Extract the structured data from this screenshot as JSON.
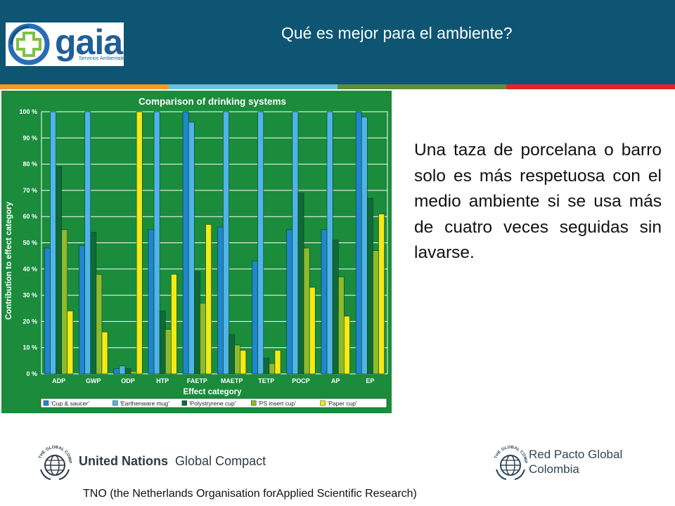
{
  "header": {
    "title": "Qué es mejor para el ambiente?",
    "logo_text": "gaia",
    "logo_subtitle": "Servicios Ambientales"
  },
  "colors": {
    "header_bg": "#0e5573",
    "stripe": [
      "#f29a25",
      "#67c3dd",
      "#5e8c3a",
      "#e2232a"
    ],
    "chart_bg": "#1a8c3c",
    "series": [
      "#1f86cf",
      "#4fb4e8",
      "#0f6a36",
      "#8dbb2d",
      "#f5ea14"
    ]
  },
  "chart_data": {
    "type": "bar",
    "title": "Comparison of drinking systems",
    "xlabel": "Effect category",
    "ylabel": "Contribution to effect category",
    "ylim": [
      0,
      100
    ],
    "yticks": [
      "0 %",
      "10 %",
      "20 %",
      "30 %",
      "40 %",
      "50 %",
      "60 %",
      "70 %",
      "80 %",
      "90 %",
      "100 %"
    ],
    "categories": [
      "ADP",
      "GWP",
      "ODP",
      "HTP",
      "FAETP",
      "MAETP",
      "TETP",
      "POCP",
      "AP",
      "EP"
    ],
    "series": [
      {
        "name": "'Cup & saucer'",
        "values": [
          48,
          49,
          2,
          55,
          100,
          56,
          43,
          55,
          55,
          100
        ]
      },
      {
        "name": "'Earthenware mug'",
        "values": [
          100,
          100,
          3,
          100,
          96,
          100,
          100,
          100,
          100,
          98
        ]
      },
      {
        "name": "'Polystryrene cup'",
        "values": [
          79,
          54,
          2,
          24,
          39,
          15,
          6,
          69,
          51,
          67
        ]
      },
      {
        "name": "'PS insert cup'",
        "values": [
          55,
          38,
          1,
          17,
          27,
          11,
          4,
          48,
          37,
          47
        ]
      },
      {
        "name": "'Paper cup'",
        "values": [
          24,
          16,
          100,
          38,
          57,
          9,
          9,
          33,
          22,
          61
        ]
      }
    ],
    "legend_position": "bottom",
    "grid": true
  },
  "body_text": "Una taza de porcelana o barro solo es más respetuosa con el medio ambiente si se usa más de cuatro veces seguidas sin lavarse.",
  "footer": {
    "un_name": "United Nations",
    "un_program": "Global Compact",
    "un_seal_text": "THE GLOBAL COMPACT",
    "rp_line1": "Red Pacto Global",
    "rp_line2": "Colombia",
    "source": "TNO (the Netherlands Organisation forApplied Scientific Research)"
  }
}
